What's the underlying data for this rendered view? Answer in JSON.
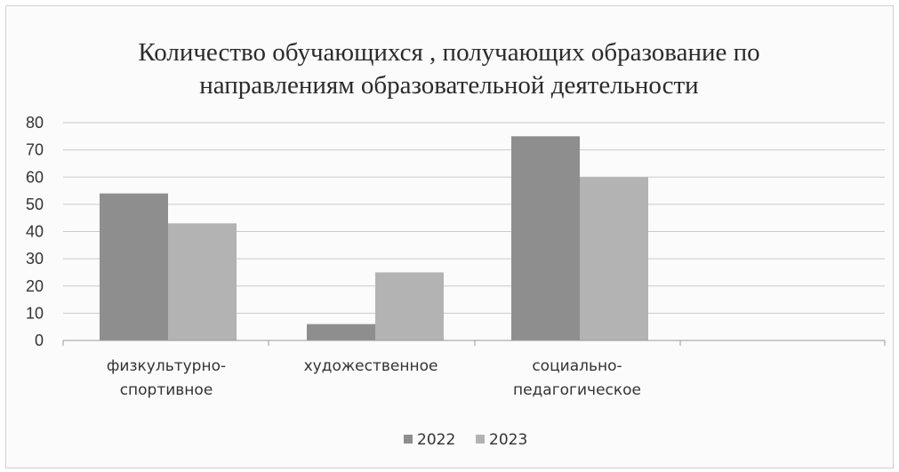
{
  "chart_data": {
    "type": "bar",
    "title_lines": [
      "Количество обучающихся , получающих образование по",
      "направлениям образовательной деятельности"
    ],
    "categories": [
      [
        "физкультурно-",
        "спортивное"
      ],
      [
        "художественное"
      ],
      [
        "социально-",
        "педагогическое"
      ]
    ],
    "series": [
      {
        "name": "2022",
        "values": [
          54,
          6,
          75
        ],
        "color": "#8e8e8e"
      },
      {
        "name": "2023",
        "values": [
          43,
          25,
          60
        ],
        "color": "#b3b3b3"
      }
    ],
    "ylim": [
      0,
      80
    ],
    "yticks": [
      0,
      10,
      20,
      30,
      40,
      50,
      60,
      70,
      80
    ],
    "grid": true,
    "legend_position": "bottom"
  }
}
